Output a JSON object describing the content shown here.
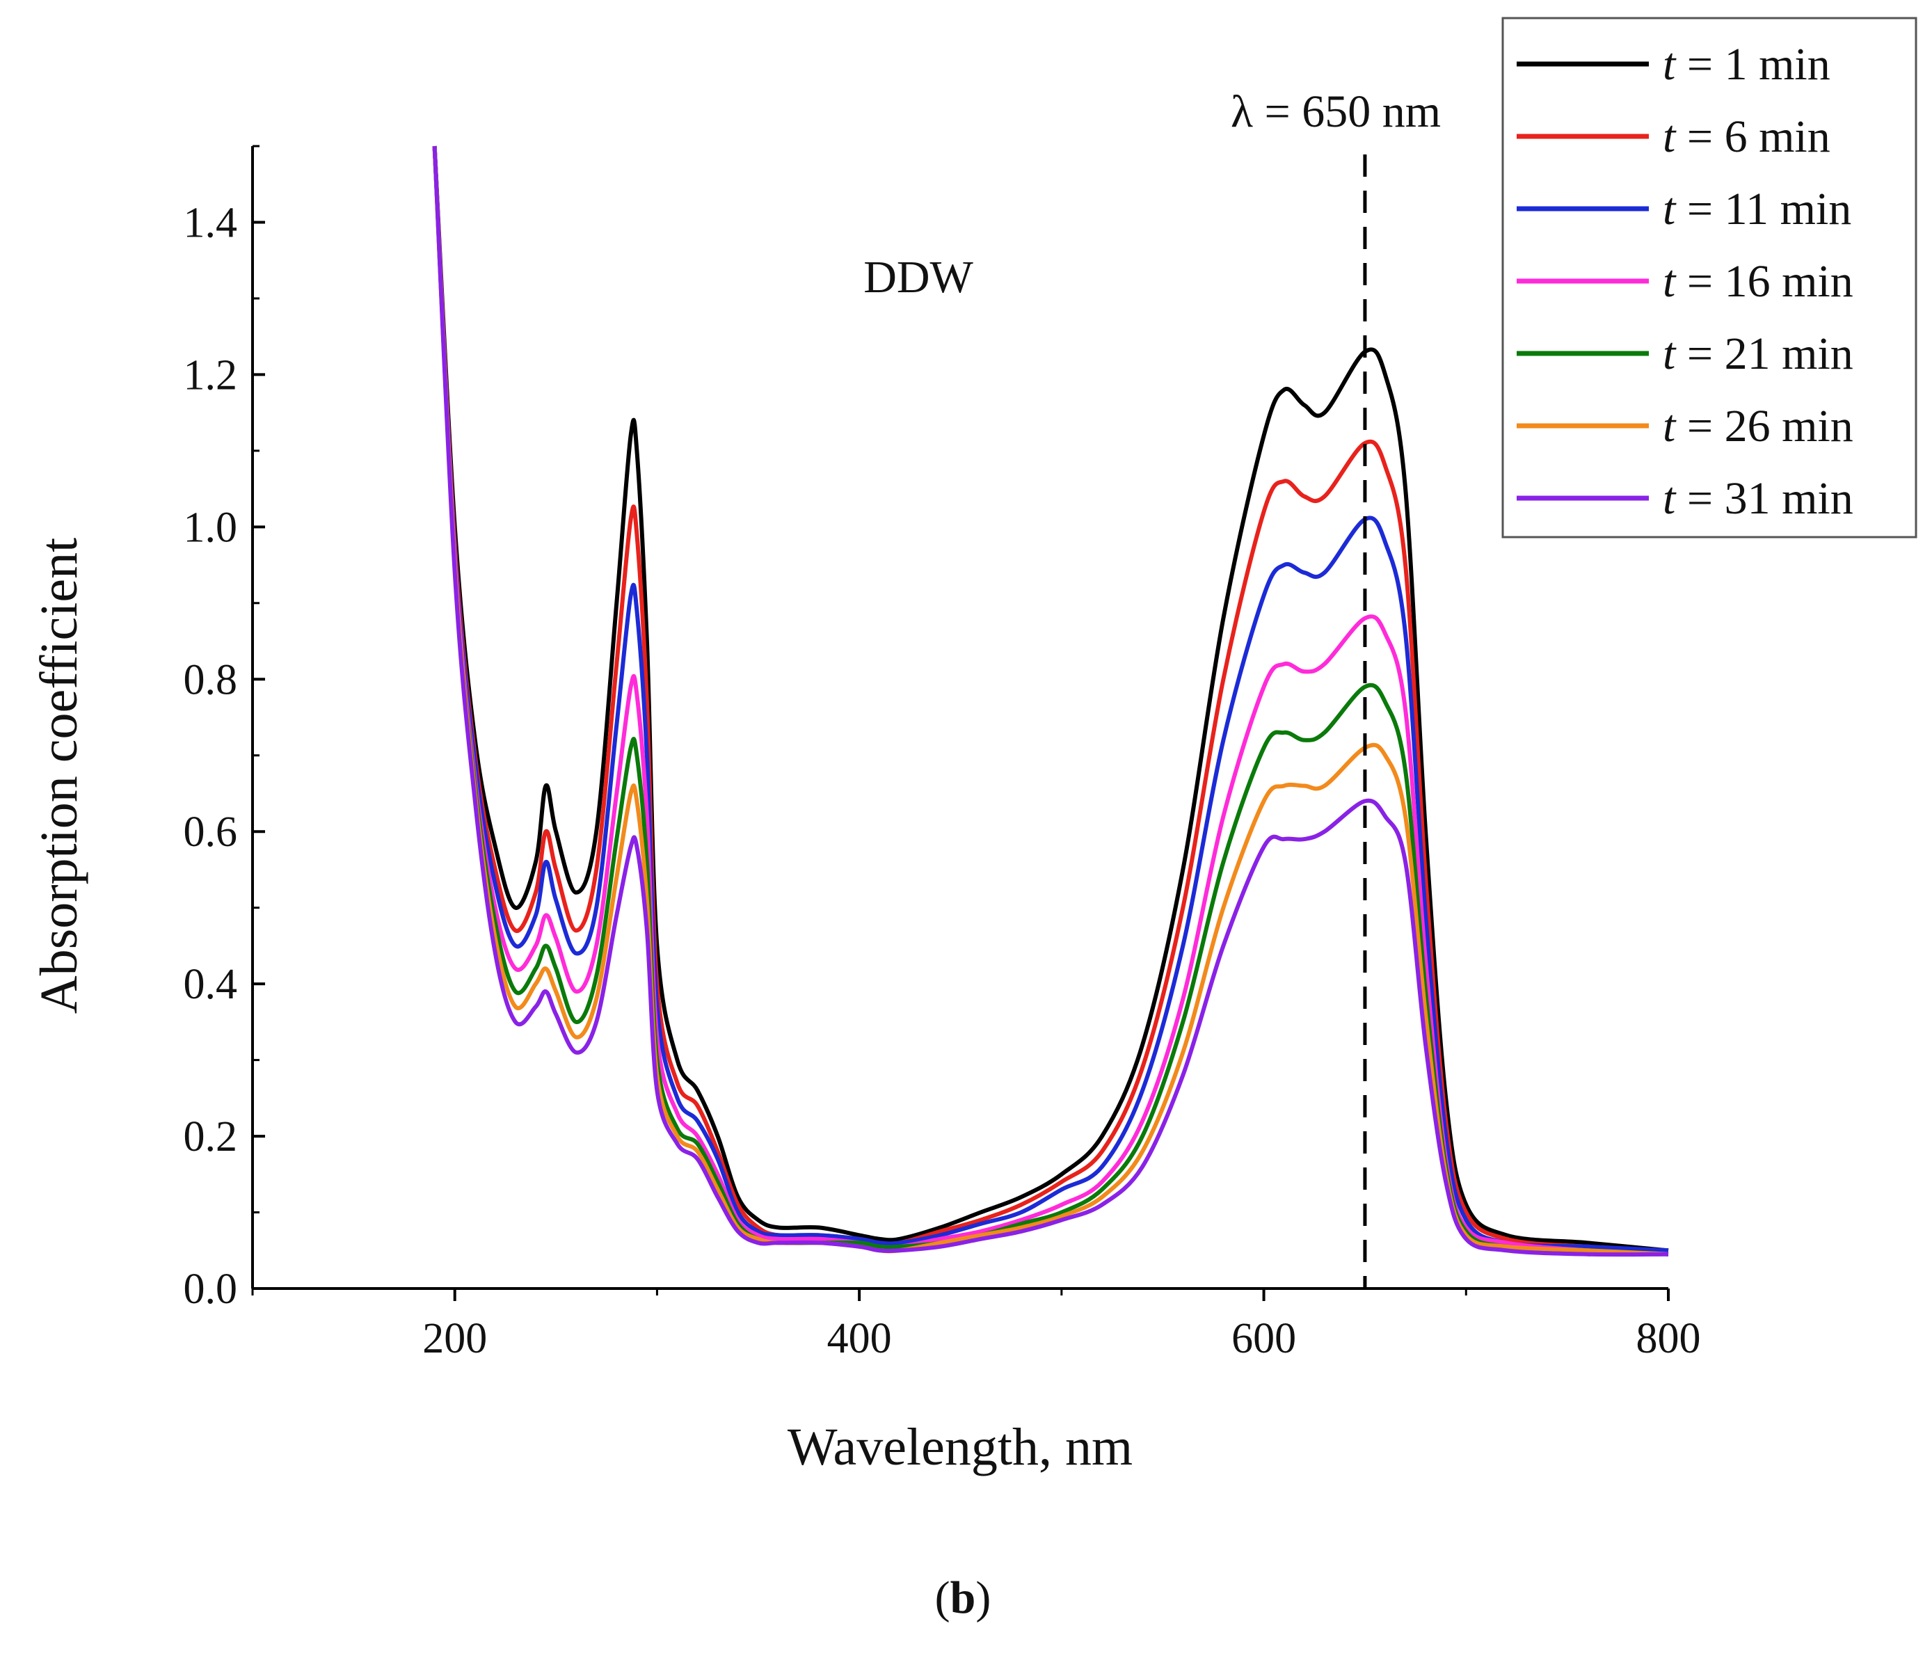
{
  "chart_data": {
    "type": "line",
    "xlabel": "Wavelength, nm",
    "ylabel": "Absorption coefficient",
    "xlim": [
      100,
      800
    ],
    "ylim": [
      0.0,
      1.5
    ],
    "x_ticks": [
      "200",
      "400",
      "600",
      "800"
    ],
    "y_ticks": [
      "0.0",
      "0.2",
      "0.4",
      "0.6",
      "0.8",
      "1.0",
      "1.2",
      "1.4"
    ],
    "annotations": [
      "DDW",
      "λ = 650 nm"
    ],
    "marker_line_x": 650,
    "legend_position": "top-right",
    "caption_open": "(",
    "caption_letter": "b",
    "caption_close": ")",
    "x": [
      190,
      200,
      210,
      220,
      230,
      240,
      245,
      250,
      260,
      270,
      280,
      287,
      290,
      295,
      300,
      310,
      320,
      330,
      340,
      350,
      360,
      380,
      400,
      410,
      420,
      440,
      460,
      480,
      500,
      520,
      540,
      560,
      580,
      600,
      610,
      620,
      630,
      650,
      660,
      670,
      680,
      690,
      700,
      720,
      760,
      800
    ],
    "series": [
      {
        "name": "t = 1 min",
        "legend_t": "t",
        "legend_rest": " = 1 min",
        "color": "#000000",
        "values": [
          1.5,
          1.0,
          0.72,
          0.58,
          0.5,
          0.56,
          0.66,
          0.6,
          0.52,
          0.6,
          0.9,
          1.12,
          1.1,
          0.85,
          0.45,
          0.3,
          0.26,
          0.2,
          0.12,
          0.09,
          0.08,
          0.08,
          0.07,
          0.065,
          0.065,
          0.08,
          0.1,
          0.12,
          0.15,
          0.2,
          0.32,
          0.55,
          0.88,
          1.12,
          1.18,
          1.16,
          1.15,
          1.23,
          1.2,
          1.05,
          0.6,
          0.25,
          0.11,
          0.07,
          0.06,
          0.05
        ]
      },
      {
        "name": "t = 6 min",
        "legend_t": "t",
        "legend_rest": " = 6 min",
        "color": "#e8221c",
        "values": [
          1.5,
          0.98,
          0.7,
          0.55,
          0.47,
          0.52,
          0.6,
          0.55,
          0.47,
          0.55,
          0.82,
          1.01,
          0.99,
          0.77,
          0.4,
          0.27,
          0.24,
          0.18,
          0.11,
          0.08,
          0.07,
          0.07,
          0.065,
          0.06,
          0.06,
          0.075,
          0.09,
          0.11,
          0.14,
          0.18,
          0.29,
          0.5,
          0.8,
          1.02,
          1.06,
          1.04,
          1.04,
          1.11,
          1.08,
          0.95,
          0.54,
          0.22,
          0.1,
          0.065,
          0.055,
          0.05
        ]
      },
      {
        "name": "t = 11 min",
        "legend_t": "t",
        "legend_rest": " = 11 min",
        "color": "#1c2bd6",
        "values": [
          1.5,
          0.97,
          0.69,
          0.53,
          0.45,
          0.49,
          0.56,
          0.51,
          0.44,
          0.5,
          0.74,
          0.91,
          0.89,
          0.7,
          0.37,
          0.25,
          0.22,
          0.17,
          0.1,
          0.075,
          0.07,
          0.07,
          0.065,
          0.06,
          0.06,
          0.07,
          0.085,
          0.1,
          0.13,
          0.16,
          0.26,
          0.45,
          0.72,
          0.91,
          0.95,
          0.94,
          0.94,
          1.01,
          0.98,
          0.86,
          0.49,
          0.2,
          0.09,
          0.06,
          0.055,
          0.05
        ]
      },
      {
        "name": "t = 16 min",
        "legend_t": "t",
        "legend_rest": " = 16 min",
        "color": "#ff2bd9",
        "values": [
          1.5,
          0.96,
          0.67,
          0.5,
          0.42,
          0.45,
          0.49,
          0.46,
          0.39,
          0.45,
          0.65,
          0.79,
          0.78,
          0.62,
          0.33,
          0.23,
          0.2,
          0.15,
          0.09,
          0.07,
          0.065,
          0.065,
          0.06,
          0.055,
          0.055,
          0.065,
          0.075,
          0.09,
          0.11,
          0.14,
          0.22,
          0.38,
          0.62,
          0.79,
          0.82,
          0.81,
          0.82,
          0.88,
          0.86,
          0.76,
          0.43,
          0.17,
          0.08,
          0.06,
          0.05,
          0.045
        ]
      },
      {
        "name": "t = 21 min",
        "legend_t": "t",
        "legend_rest": " = 21 min",
        "color": "#0a7a0a",
        "values": [
          1.5,
          0.95,
          0.66,
          0.48,
          0.39,
          0.42,
          0.45,
          0.42,
          0.35,
          0.41,
          0.59,
          0.71,
          0.7,
          0.56,
          0.3,
          0.21,
          0.19,
          0.14,
          0.085,
          0.065,
          0.06,
          0.06,
          0.06,
          0.055,
          0.055,
          0.06,
          0.07,
          0.085,
          0.1,
          0.13,
          0.2,
          0.35,
          0.56,
          0.71,
          0.73,
          0.72,
          0.73,
          0.79,
          0.77,
          0.68,
          0.39,
          0.16,
          0.075,
          0.055,
          0.05,
          0.045
        ]
      },
      {
        "name": "t = 26 min",
        "legend_t": "t",
        "legend_rest": " = 26 min",
        "color": "#f28a1c",
        "values": [
          1.5,
          0.95,
          0.65,
          0.46,
          0.37,
          0.4,
          0.42,
          0.39,
          0.33,
          0.38,
          0.54,
          0.65,
          0.64,
          0.51,
          0.28,
          0.2,
          0.18,
          0.13,
          0.08,
          0.065,
          0.06,
          0.06,
          0.055,
          0.05,
          0.05,
          0.06,
          0.07,
          0.08,
          0.095,
          0.12,
          0.18,
          0.31,
          0.5,
          0.64,
          0.66,
          0.66,
          0.66,
          0.71,
          0.7,
          0.62,
          0.36,
          0.15,
          0.07,
          0.055,
          0.05,
          0.045
        ]
      },
      {
        "name": "t = 31 min",
        "legend_t": "t",
        "legend_rest": " = 31 min",
        "color": "#8a22e6",
        "values": [
          1.5,
          0.94,
          0.64,
          0.44,
          0.35,
          0.37,
          0.39,
          0.36,
          0.31,
          0.35,
          0.49,
          0.58,
          0.58,
          0.47,
          0.26,
          0.19,
          0.17,
          0.12,
          0.075,
          0.06,
          0.06,
          0.06,
          0.055,
          0.05,
          0.05,
          0.055,
          0.065,
          0.075,
          0.09,
          0.11,
          0.16,
          0.28,
          0.45,
          0.58,
          0.59,
          0.59,
          0.6,
          0.64,
          0.62,
          0.56,
          0.32,
          0.14,
          0.065,
          0.05,
          0.045,
          0.045
        ]
      }
    ]
  }
}
